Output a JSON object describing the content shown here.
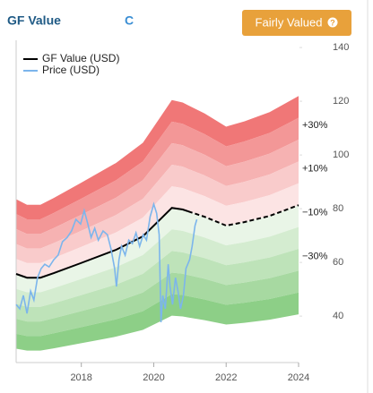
{
  "header": {
    "title": "GF Value",
    "ticker": "C",
    "button": "Fairly Valued",
    "help_icon": "?"
  },
  "chart_data": {
    "type": "line",
    "xlim": [
      2016.2,
      2024
    ],
    "xticks": [
      2018,
      2020,
      2022,
      2024
    ],
    "ylim": [
      22.7,
      142.7
    ],
    "yticks": [
      40,
      60,
      80,
      100,
      120,
      140
    ],
    "bands": [
      {
        "from": 40,
        "to": 50,
        "color": "#f07777"
      },
      {
        "from": 30,
        "to": 40,
        "color": "#f39797"
      },
      {
        "from": 20,
        "to": 30,
        "color": "#f6b2b2"
      },
      {
        "from": 10,
        "to": 20,
        "color": "#f9cbcb"
      },
      {
        "from": 0,
        "to": 10,
        "color": "#fce4e4"
      },
      {
        "from": -10,
        "to": 0,
        "color": "#e9f5e7"
      },
      {
        "from": -20,
        "to": -10,
        "color": "#d4ecd0"
      },
      {
        "from": -30,
        "to": -20,
        "color": "#bee3b9"
      },
      {
        "from": -40,
        "to": -30,
        "color": "#a7d9a1"
      },
      {
        "from": -50,
        "to": -40,
        "color": "#8dcf87"
      }
    ],
    "band_labels": [
      {
        "value": 30,
        "label": "+30%"
      },
      {
        "value": 10,
        "label": "+10%"
      },
      {
        "value": -10,
        "label": "−10%"
      },
      {
        "value": -30,
        "label": "−30%"
      }
    ],
    "series": [
      {
        "name": "GF Value (USD)",
        "color": "#000000",
        "dashed_from": 2020.95,
        "x": [
          2016.2,
          2016.5,
          2016.87,
          2017.24,
          2017.98,
          2018.96,
          2019.7,
          2020.2,
          2020.5,
          2020.8,
          2020.95,
          2021.4,
          2022,
          2022.5,
          2023.2,
          2024
        ],
        "values": [
          55.7,
          54.3,
          54.3,
          56,
          59.7,
          64.7,
          69.7,
          76.3,
          80.3,
          79.7,
          79,
          77,
          73.7,
          75,
          77.3,
          81.3
        ]
      },
      {
        "name": "Price (USD)",
        "color": "#7cb5ec",
        "x": [
          2016.2,
          2016.3,
          2016.4,
          2016.5,
          2016.6,
          2016.69,
          2016.79,
          2016.89,
          2016.99,
          2017.11,
          2017.24,
          2017.36,
          2017.48,
          2017.61,
          2017.73,
          2017.85,
          2017.98,
          2018.08,
          2018.18,
          2018.27,
          2018.37,
          2018.47,
          2018.6,
          2018.72,
          2018.82,
          2018.92,
          2018.97,
          2019.04,
          2019.11,
          2019.21,
          2019.31,
          2019.41,
          2019.51,
          2019.61,
          2019.71,
          2019.8,
          2019.9,
          2020.0,
          2020.08,
          2020.15,
          2020.2,
          2020.25,
          2020.32,
          2020.4,
          2020.45,
          2020.52,
          2020.6,
          2020.67,
          2020.74,
          2020.82,
          2020.89,
          2020.99,
          2021.06,
          2021.14,
          2021.19
        ],
        "values": [
          44.3,
          42.7,
          47.7,
          41,
          49.3,
          46,
          54.3,
          57.7,
          59.3,
          58.3,
          61,
          62.7,
          67.7,
          69.3,
          71.7,
          76,
          74.3,
          79.3,
          74.3,
          69.3,
          72.7,
          68.3,
          71.7,
          70.3,
          65,
          57.7,
          51,
          61,
          66,
          62.7,
          68.3,
          67,
          71,
          66,
          70.3,
          68.3,
          77,
          81.7,
          78.3,
          70.3,
          37.7,
          47.7,
          42.7,
          59.3,
          51,
          44.3,
          54.3,
          49.3,
          42.7,
          47.7,
          57.7,
          61,
          66,
          73.7,
          76
        ]
      }
    ]
  }
}
